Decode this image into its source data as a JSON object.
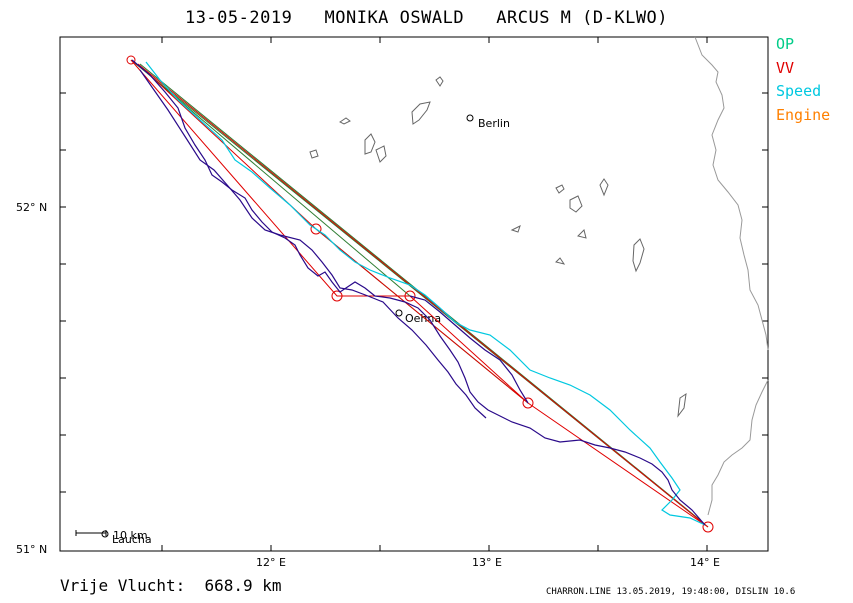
{
  "title": "13-05-2019   MONIKA OSWALD   ARCUS M (D-KLWO)",
  "legend": [
    {
      "label": "OP",
      "color": "#00cc88"
    },
    {
      "label": "VV",
      "color": "#e00000"
    },
    {
      "label": "Speed",
      "color": "#00c8e0"
    },
    {
      "label": "Engine",
      "color": "#ff8000"
    }
  ],
  "axes": {
    "lat_labels": [
      "52° N",
      "51° N"
    ],
    "lon_labels": [
      "12° E",
      "13° E",
      "14° E"
    ]
  },
  "places": [
    {
      "name": "Berlin",
      "lon": 12.92,
      "lat": 52.26
    },
    {
      "name": "Oehna",
      "lon": 12.56,
      "lat": 51.69
    },
    {
      "name": "Laucha",
      "lon": 11.18,
      "lat": 51.04
    }
  ],
  "scale_label": "10  km",
  "distance": "Vrije Vlucht:  668.9 km",
  "footer": "CHARRON.LINE 13.05.2019, 19:48:00, DISLIN 10.6",
  "turnpoints": [
    {
      "lon": 11.28,
      "lat": 52.44
    },
    {
      "lon": 12.18,
      "lat": 51.94
    },
    {
      "lon": 12.3,
      "lat": 51.73
    },
    {
      "lon": 12.63,
      "lat": 51.74
    },
    {
      "lon": 13.2,
      "lat": 51.42
    },
    {
      "lon": 14.03,
      "lat": 51.07
    }
  ],
  "colors": {
    "track": "#2a0a8a",
    "op": "#2e7d32",
    "vv": "#e00000",
    "speed": "#00c8e0",
    "engine": "#ff8000",
    "border": "#999999",
    "lakes": "#666666"
  }
}
